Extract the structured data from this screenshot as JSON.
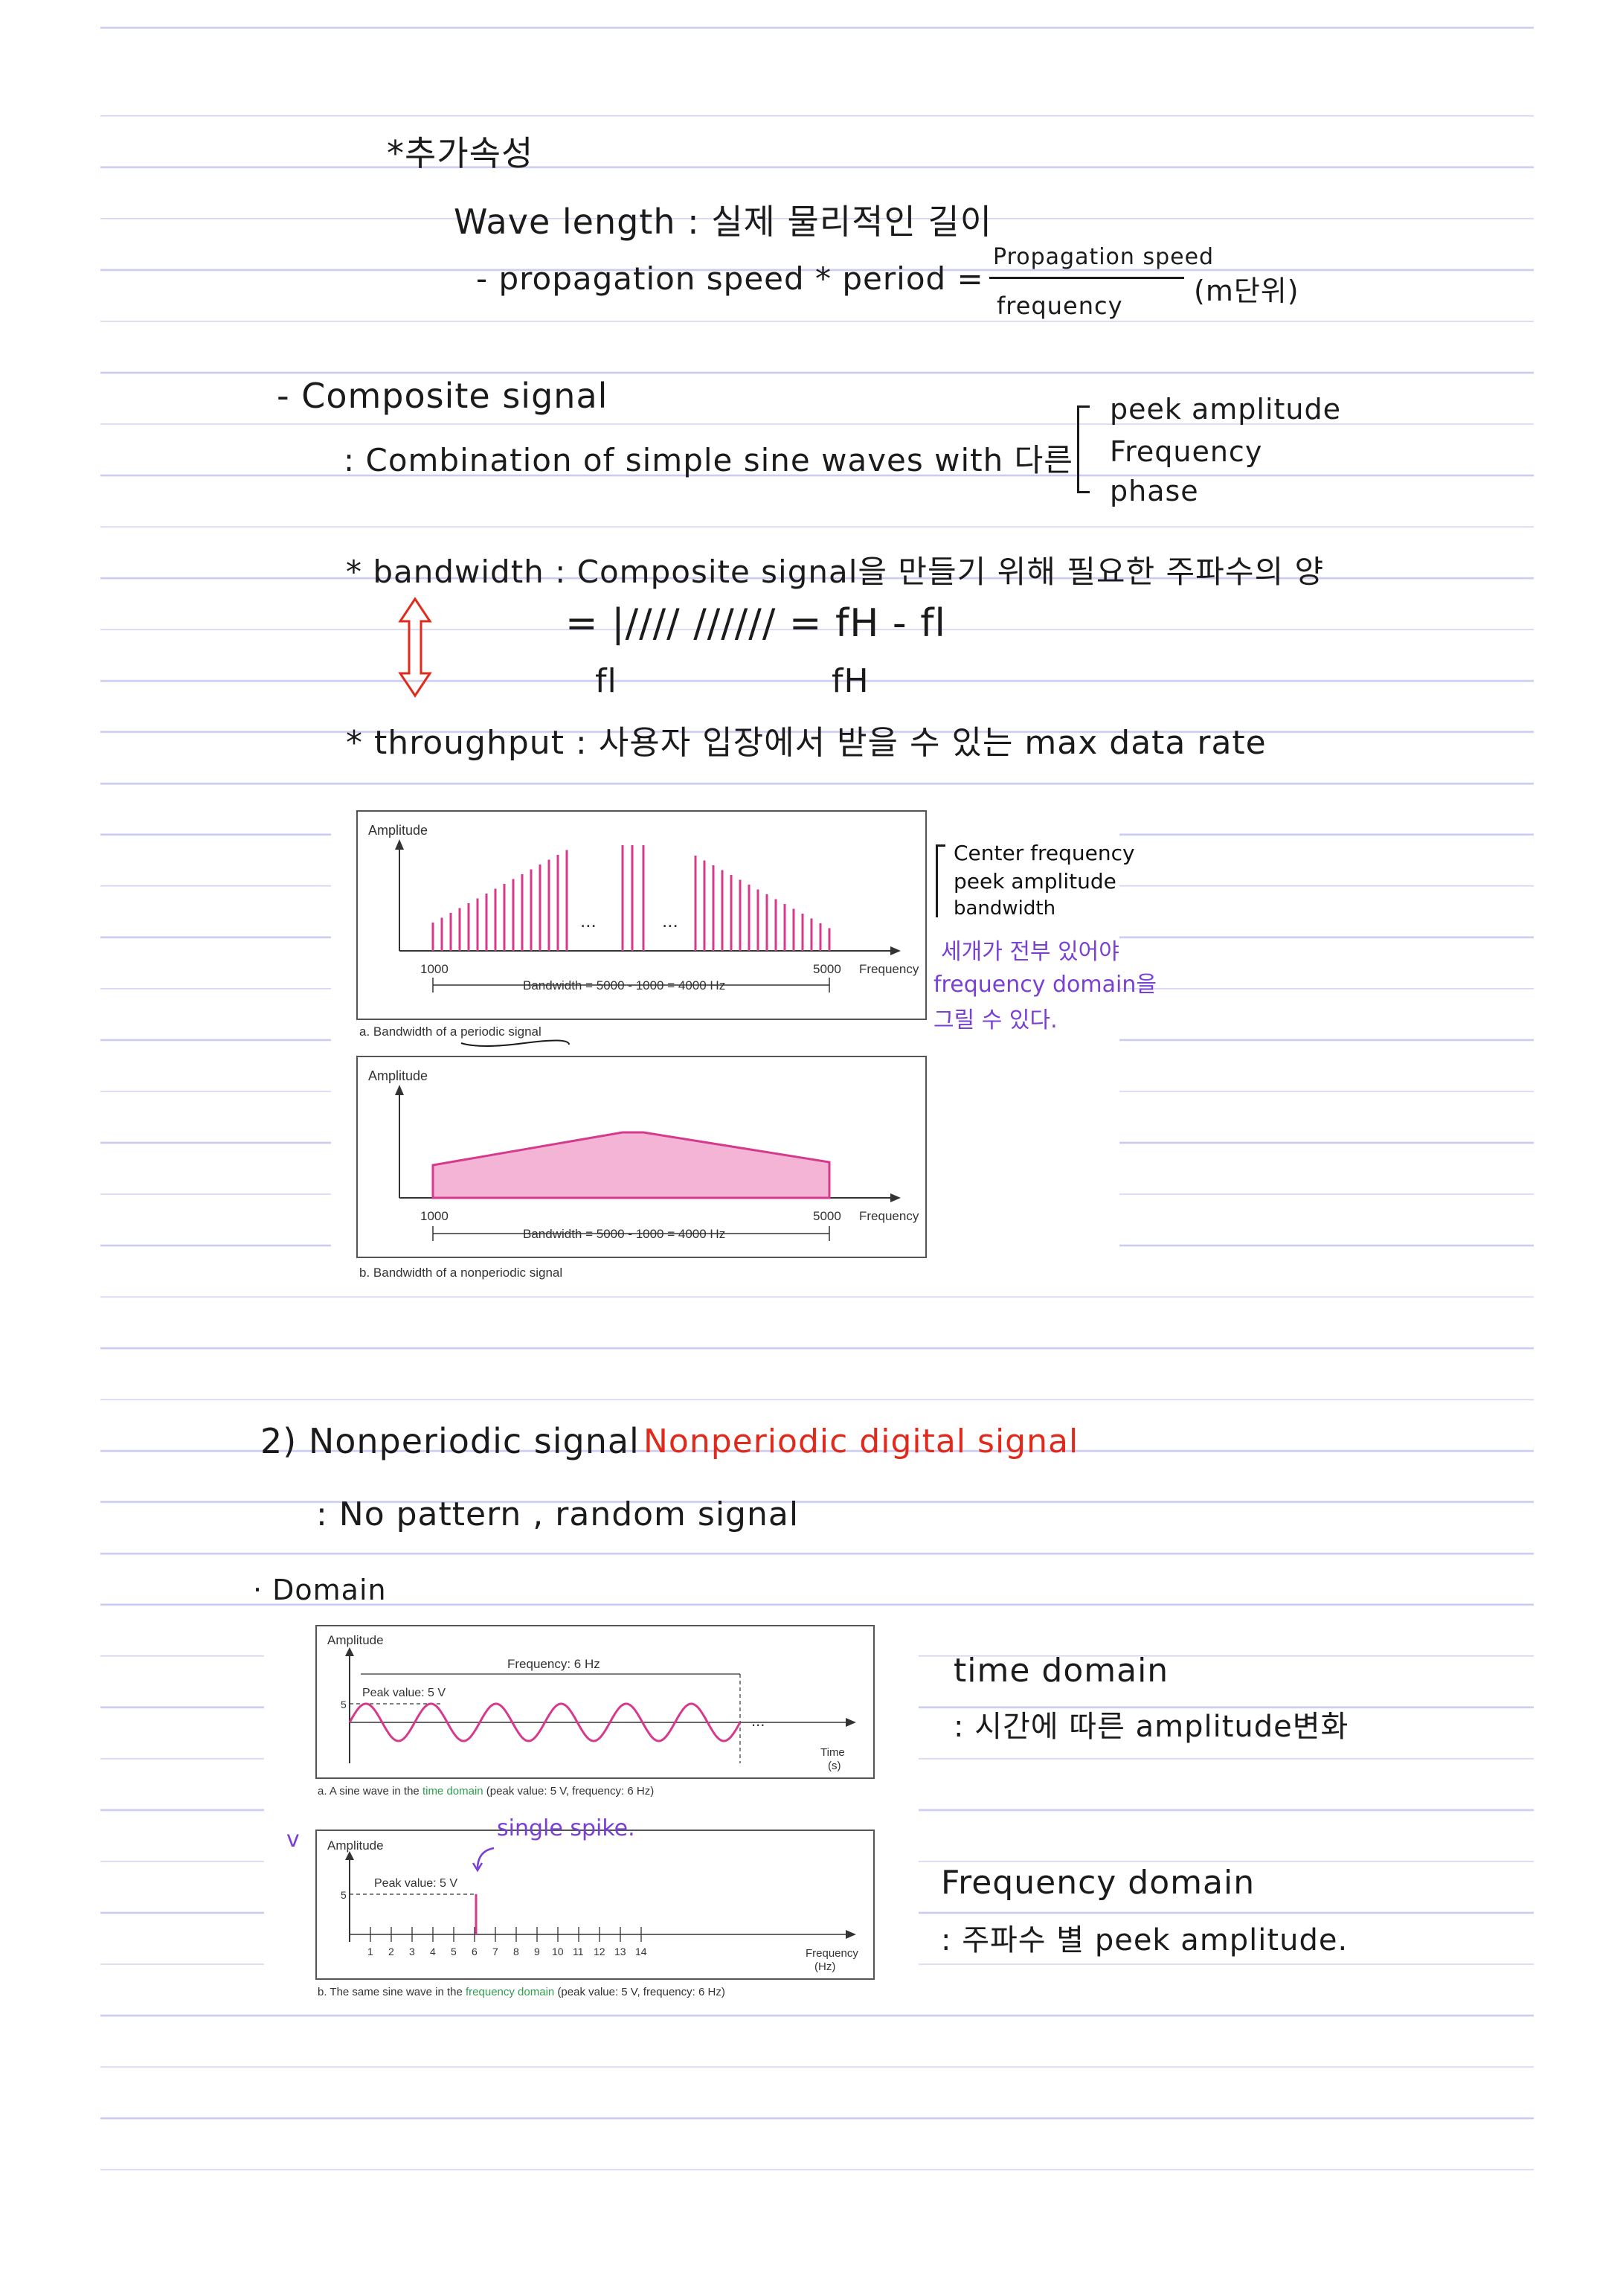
{
  "notes": {
    "heading_extra": "*추가속성",
    "wavelength": "Wave length : 실제 물리적인 길이",
    "wavelength_formula_lhs": "- propagation speed * period =",
    "wavelength_formula_num": "Propagation speed",
    "wavelength_formula_den": "frequency",
    "wavelength_formula_unit": "(m단위)",
    "composite_title": "- Composite signal",
    "composite_def": ": Combination of simple sine waves with 다른",
    "composite_opt1": "peek amplitude",
    "composite_opt2": "Frequency",
    "composite_opt3": "phase",
    "bandwidth_def": "* bandwidth : Composite signal을 만들기 위해 필요한 주파수의 양",
    "bandwidth_eq": "= |//// ////// = fH - fl",
    "bandwidth_fl": "fl",
    "bandwidth_fh": "fH",
    "throughput_def": "* throughput : 사용자 입장에서 받을 수 있는 max data rate",
    "side_center": "Center frequency",
    "side_peak": "peek amplitude",
    "side_bw": "bandwidth",
    "side_purple_1": "세개가 전부 있어야",
    "side_purple_2": "frequency domain을",
    "side_purple_3": "그릴 수 있다.",
    "nonperiodic_title": "2) Nonperiodic signal",
    "nonperiodic_red": "Nonperiodic digital signal",
    "nonperiodic_def": ": No pattern , random signal",
    "domain_title": "· Domain",
    "time_domain": "time domain",
    "time_domain_def": ": 시간에 따른 amplitude변화",
    "freq_domain": "Frequency domain",
    "freq_domain_def": ": 주파수 별 peek amplitude.",
    "single_spike": "single spike.",
    "check_mark": "v"
  },
  "fig_bandwidth": {
    "a": {
      "ylabel": "Amplitude",
      "x_start": "1000",
      "x_end": "5000",
      "xlabel": "Frequency",
      "bw_label": "Bandwidth = 5000 - 1000 = 4000 Hz",
      "dots": "...",
      "caption": "a. Bandwidth of a periodic signal",
      "bar_color": "#d63a8c"
    },
    "b": {
      "ylabel": "Amplitude",
      "x_start": "1000",
      "x_end": "5000",
      "xlabel": "Frequency",
      "bw_label": "Bandwidth = 5000 - 1000 = 4000 Hz",
      "caption": "b. Bandwidth of a nonperiodic signal",
      "fill_color": "#f4b4d6"
    }
  },
  "fig_domain": {
    "a": {
      "ylabel": "Amplitude",
      "freq_label": "Frequency: 6 Hz",
      "peak_label": "Peak value: 5 V",
      "y_tick": "5",
      "dots": "...",
      "xlabel_1": "Time",
      "xlabel_2": "(s)",
      "caption_pre": "a. A sine wave in the ",
      "caption_hl": "time domain",
      "caption_post": " (peak value: 5 V, frequency: 6 Hz)",
      "wave_color": "#d63a8c",
      "highlight_color": "#2e9e4f"
    },
    "b": {
      "ylabel": "Amplitude",
      "peak_label": "Peak value: 5 V",
      "y_tick": "5",
      "ticks": [
        "1",
        "2",
        "3",
        "4",
        "5",
        "6",
        "7",
        "8",
        "9",
        "10",
        "11",
        "12",
        "13",
        "14"
      ],
      "xlabel_1": "Frequency",
      "xlabel_2": "(Hz)",
      "caption_pre": "b. The same sine wave in the ",
      "caption_hl": "frequency domain",
      "caption_post": " (peak value: 5 V, frequency: 6 Hz)"
    }
  }
}
